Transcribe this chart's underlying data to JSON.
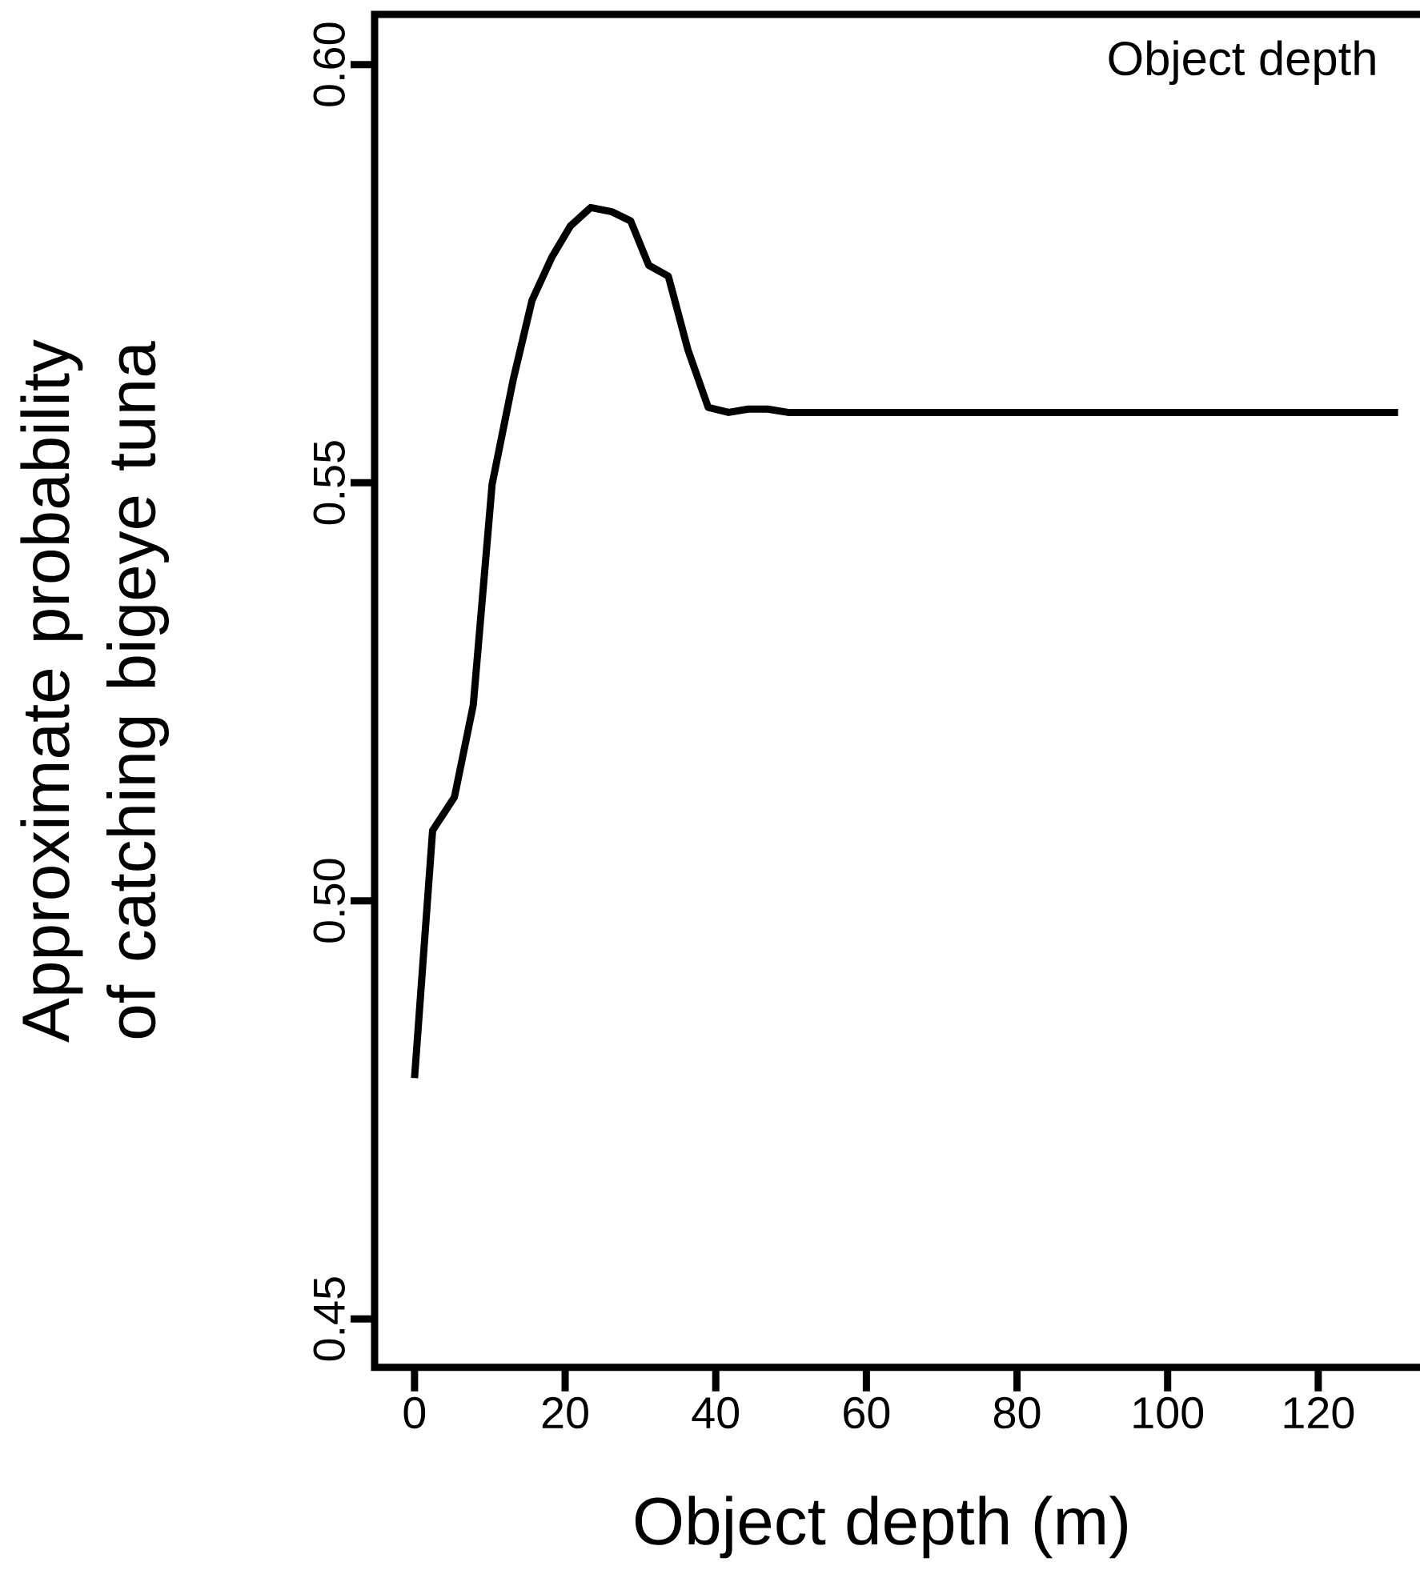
{
  "chart_data": {
    "type": "line",
    "xlabel": "Object depth (m)",
    "ylabel": "Approximate probability of catching bigeye tuna",
    "annotations": [
      "Object depth"
    ],
    "xlim": [
      -5.3,
      135
    ],
    "ylim": [
      0.4442,
      0.606
    ],
    "xticks": [
      0,
      20,
      40,
      60,
      80,
      100,
      120
    ],
    "yticks": [
      {
        "value": 0.45,
        "label": "0.45"
      },
      {
        "value": 0.5,
        "label": "0.50"
      },
      {
        "value": 0.55,
        "label": "0.55"
      },
      {
        "value": 0.6,
        "label": "0.60"
      }
    ],
    "series": [
      {
        "color": "#000000",
        "line_style": "solid",
        "x": [
          0,
          2.4,
          5.3,
          7.8,
          10.3,
          13.1,
          15.6,
          18.2,
          20.7,
          23.4,
          26.2,
          28.7,
          31.1,
          33.7,
          36.3,
          39.0,
          41.7,
          44.3,
          46.9,
          49.6,
          130.6
        ],
        "values": [
          0.4788,
          0.5084,
          0.5124,
          0.5234,
          0.5498,
          0.5623,
          0.5718,
          0.5769,
          0.5807,
          0.5829,
          0.5824,
          0.5813,
          0.576,
          0.5747,
          0.5659,
          0.559,
          0.5584,
          0.5588,
          0.5588,
          0.5584,
          0.5584
        ]
      }
    ]
  }
}
